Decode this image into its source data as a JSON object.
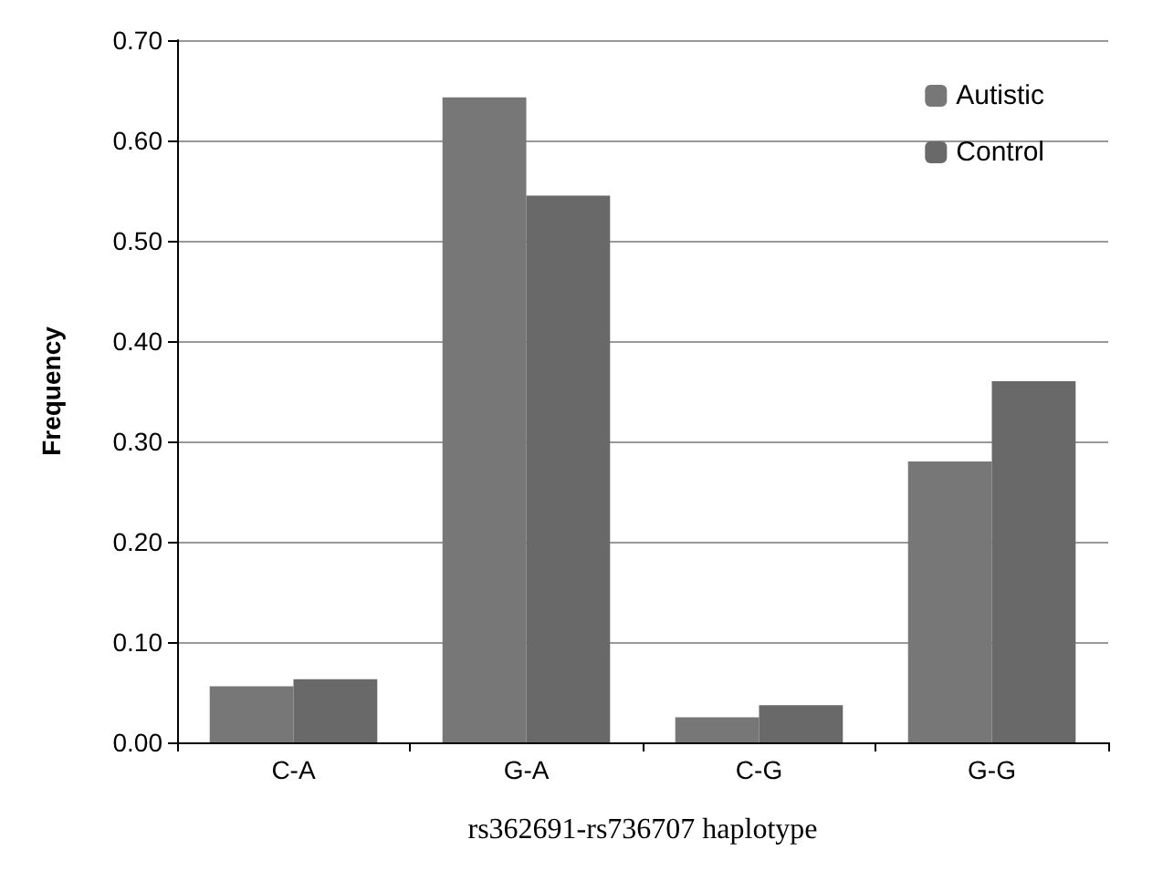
{
  "chart_data": {
    "type": "bar",
    "xlabel": "rs362691-rs736707 haplotype",
    "ylabel": "Frequency",
    "categories": [
      "C-A",
      "G-A",
      "C-G",
      "G-G"
    ],
    "series": [
      {
        "name": "Autistic",
        "color": "#777777",
        "values": [
          0.056,
          0.643,
          0.025,
          0.28
        ]
      },
      {
        "name": "Control",
        "color": "#696969",
        "values": [
          0.063,
          0.545,
          0.037,
          0.36
        ]
      }
    ],
    "ylim": [
      0,
      0.7
    ],
    "yticks": [
      {
        "value": 0,
        "label": "0.00"
      },
      {
        "value": 0.1,
        "label": "0.10"
      },
      {
        "value": 0.2,
        "label": "0.20"
      },
      {
        "value": 0.3,
        "label": "0.30"
      },
      {
        "value": 0.4,
        "label": "0.40"
      },
      {
        "value": 0.5,
        "label": "0.50"
      },
      {
        "value": 0.6,
        "label": "0.60"
      },
      {
        "value": 0.7,
        "label": "0.70"
      }
    ],
    "grid": true,
    "legend": "top right"
  }
}
